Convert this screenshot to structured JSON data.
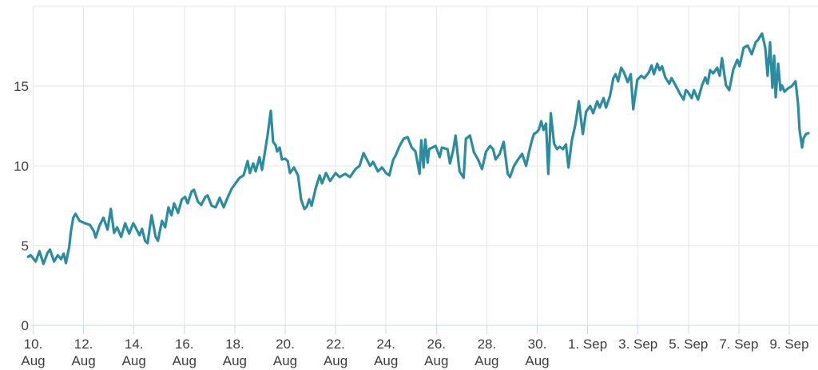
{
  "chart": {
    "background": "#ffffff",
    "styles": {
      "line_color": "#2b8ca0",
      "grid_color": "#e6e6e6",
      "axis_color": "#ccd6eb",
      "label_color": "#3d3d3d"
    }
  },
  "chart_data": {
    "type": "line",
    "title": "",
    "xlabel": "",
    "ylabel": "",
    "grid": "on",
    "legend": "none",
    "x_axis": {
      "unit": "date",
      "range_days": [
        -0.25,
        31.15
      ],
      "ticks": [
        {
          "day": 0,
          "top": "10.",
          "bottom": "Aug"
        },
        {
          "day": 2,
          "top": "12.",
          "bottom": "Aug"
        },
        {
          "day": 4,
          "top": "14.",
          "bottom": "Aug"
        },
        {
          "day": 6,
          "top": "16.",
          "bottom": "Aug"
        },
        {
          "day": 8,
          "top": "18.",
          "bottom": "Aug"
        },
        {
          "day": 10,
          "top": "20.",
          "bottom": "Aug"
        },
        {
          "day": 12,
          "top": "22.",
          "bottom": "Aug"
        },
        {
          "day": 14,
          "top": "24.",
          "bottom": "Aug"
        },
        {
          "day": 16,
          "top": "26.",
          "bottom": "Aug"
        },
        {
          "day": 18,
          "top": "28.",
          "bottom": "Aug"
        },
        {
          "day": 20,
          "top": "30.",
          "bottom": "Aug"
        },
        {
          "day": 22,
          "top": "1. Sep",
          "bottom": ""
        },
        {
          "day": 24,
          "top": "3. Sep",
          "bottom": ""
        },
        {
          "day": 26,
          "top": "5. Sep",
          "bottom": ""
        },
        {
          "day": 28,
          "top": "7. Sep",
          "bottom": ""
        },
        {
          "day": 30,
          "top": "9. Sep",
          "bottom": ""
        }
      ]
    },
    "y_axis": {
      "tick_values": [
        0,
        5,
        10,
        15
      ],
      "grid_values": [
        5,
        10,
        15,
        20
      ],
      "range": [
        0,
        20
      ]
    },
    "series": [
      {
        "color": "#2b8ca0",
        "points": [
          [
            -0.2,
            4.3
          ],
          [
            -0.1,
            4.4
          ],
          [
            0.0,
            4.2
          ],
          [
            0.1,
            4.0
          ],
          [
            0.25,
            4.65
          ],
          [
            0.41,
            3.85
          ],
          [
            0.57,
            4.55
          ],
          [
            0.67,
            4.75
          ],
          [
            0.83,
            4.0
          ],
          [
            0.98,
            4.4
          ],
          [
            1.11,
            4.15
          ],
          [
            1.21,
            4.5
          ],
          [
            1.3,
            3.9
          ],
          [
            1.43,
            4.9
          ],
          [
            1.5,
            5.9
          ],
          [
            1.59,
            6.75
          ],
          [
            1.68,
            7.0
          ],
          [
            1.84,
            6.55
          ],
          [
            2.06,
            6.4
          ],
          [
            2.25,
            6.3
          ],
          [
            2.41,
            5.9
          ],
          [
            2.48,
            5.5
          ],
          [
            2.63,
            6.25
          ],
          [
            2.79,
            6.75
          ],
          [
            2.95,
            6.0
          ],
          [
            3.08,
            7.3
          ],
          [
            3.21,
            5.8
          ],
          [
            3.33,
            6.15
          ],
          [
            3.49,
            5.55
          ],
          [
            3.65,
            6.4
          ],
          [
            3.81,
            5.75
          ],
          [
            3.97,
            6.4
          ],
          [
            4.06,
            6.15
          ],
          [
            4.22,
            5.65
          ],
          [
            4.32,
            6.05
          ],
          [
            4.44,
            5.3
          ],
          [
            4.54,
            5.15
          ],
          [
            4.7,
            6.9
          ],
          [
            4.86,
            5.55
          ],
          [
            4.95,
            5.3
          ],
          [
            5.11,
            6.55
          ],
          [
            5.24,
            6.15
          ],
          [
            5.37,
            7.4
          ],
          [
            5.49,
            6.9
          ],
          [
            5.59,
            7.65
          ],
          [
            5.75,
            7.05
          ],
          [
            5.9,
            7.9
          ],
          [
            6.03,
            8.05
          ],
          [
            6.13,
            7.65
          ],
          [
            6.29,
            8.4
          ],
          [
            6.38,
            8.5
          ],
          [
            6.54,
            7.75
          ],
          [
            6.67,
            7.55
          ],
          [
            6.83,
            8.05
          ],
          [
            6.92,
            8.15
          ],
          [
            7.08,
            7.5
          ],
          [
            7.24,
            7.4
          ],
          [
            7.4,
            8.0
          ],
          [
            7.56,
            7.4
          ],
          [
            7.71,
            8.0
          ],
          [
            7.87,
            8.55
          ],
          [
            8.03,
            8.9
          ],
          [
            8.19,
            9.25
          ],
          [
            8.35,
            9.4
          ],
          [
            8.51,
            10.3
          ],
          [
            8.6,
            9.55
          ],
          [
            8.73,
            10.15
          ],
          [
            8.83,
            9.65
          ],
          [
            8.98,
            10.55
          ],
          [
            9.08,
            9.75
          ],
          [
            9.3,
            11.9
          ],
          [
            9.43,
            13.45
          ],
          [
            9.52,
            11.5
          ],
          [
            9.62,
            11.3
          ],
          [
            9.68,
            10.9
          ],
          [
            9.78,
            11.15
          ],
          [
            9.87,
            10.4
          ],
          [
            10.0,
            10.45
          ],
          [
            10.1,
            10.3
          ],
          [
            10.19,
            9.55
          ],
          [
            10.35,
            9.9
          ],
          [
            10.51,
            9.4
          ],
          [
            10.63,
            7.9
          ],
          [
            10.76,
            7.3
          ],
          [
            10.86,
            7.45
          ],
          [
            10.95,
            7.9
          ],
          [
            11.05,
            7.5
          ],
          [
            11.21,
            8.6
          ],
          [
            11.37,
            9.4
          ],
          [
            11.46,
            8.9
          ],
          [
            11.62,
            9.55
          ],
          [
            11.78,
            9.05
          ],
          [
            12.0,
            9.55
          ],
          [
            12.16,
            9.3
          ],
          [
            12.38,
            9.5
          ],
          [
            12.57,
            9.3
          ],
          [
            12.79,
            9.8
          ],
          [
            12.95,
            10.0
          ],
          [
            13.11,
            10.8
          ],
          [
            13.37,
            10.0
          ],
          [
            13.49,
            10.25
          ],
          [
            13.68,
            9.65
          ],
          [
            13.84,
            9.9
          ],
          [
            14.0,
            9.55
          ],
          [
            14.13,
            9.4
          ],
          [
            14.29,
            10.4
          ],
          [
            14.38,
            10.65
          ],
          [
            14.54,
            11.25
          ],
          [
            14.7,
            11.7
          ],
          [
            14.86,
            11.8
          ],
          [
            15.02,
            11.15
          ],
          [
            15.17,
            10.9
          ],
          [
            15.33,
            9.5
          ],
          [
            15.4,
            11.6
          ],
          [
            15.49,
            9.9
          ],
          [
            15.56,
            11.65
          ],
          [
            15.65,
            10.2
          ],
          [
            15.71,
            11.05
          ],
          [
            15.97,
            11.25
          ],
          [
            16.13,
            10.55
          ],
          [
            16.22,
            11.15
          ],
          [
            16.44,
            11.05
          ],
          [
            16.54,
            10.15
          ],
          [
            16.67,
            11.0
          ],
          [
            16.76,
            11.9
          ],
          [
            16.92,
            9.65
          ],
          [
            17.08,
            9.25
          ],
          [
            17.17,
            11.7
          ],
          [
            17.33,
            11.9
          ],
          [
            17.49,
            10.85
          ],
          [
            17.65,
            10.4
          ],
          [
            17.81,
            9.8
          ],
          [
            17.97,
            10.9
          ],
          [
            18.13,
            11.25
          ],
          [
            18.25,
            11.05
          ],
          [
            18.35,
            10.4
          ],
          [
            18.51,
            10.75
          ],
          [
            18.67,
            11.5
          ],
          [
            18.83,
            9.5
          ],
          [
            18.92,
            9.3
          ],
          [
            19.08,
            10.0
          ],
          [
            19.24,
            10.4
          ],
          [
            19.4,
            10.75
          ],
          [
            19.56,
            10.0
          ],
          [
            19.68,
            10.9
          ],
          [
            19.78,
            11.55
          ],
          [
            19.87,
            12.0
          ],
          [
            19.97,
            12.1
          ],
          [
            20.06,
            12.25
          ],
          [
            20.16,
            12.8
          ],
          [
            20.25,
            12.25
          ],
          [
            20.35,
            12.65
          ],
          [
            20.44,
            9.5
          ],
          [
            20.54,
            13.3
          ],
          [
            20.67,
            11.4
          ],
          [
            20.79,
            11.05
          ],
          [
            20.89,
            11.2
          ],
          [
            21.02,
            11.05
          ],
          [
            21.14,
            11.35
          ],
          [
            21.24,
            9.9
          ],
          [
            21.37,
            11.55
          ],
          [
            21.52,
            12.65
          ],
          [
            21.65,
            14.05
          ],
          [
            21.81,
            12.0
          ],
          [
            21.94,
            13.4
          ],
          [
            22.1,
            13.75
          ],
          [
            22.22,
            13.3
          ],
          [
            22.38,
            14.05
          ],
          [
            22.48,
            13.65
          ],
          [
            22.63,
            14.25
          ],
          [
            22.73,
            13.65
          ],
          [
            22.89,
            14.4
          ],
          [
            23.02,
            15.5
          ],
          [
            23.11,
            15.75
          ],
          [
            23.21,
            15.3
          ],
          [
            23.33,
            16.15
          ],
          [
            23.43,
            15.9
          ],
          [
            23.59,
            15.25
          ],
          [
            23.71,
            15.75
          ],
          [
            23.81,
            13.55
          ],
          [
            23.97,
            15.4
          ],
          [
            24.13,
            15.65
          ],
          [
            24.25,
            15.5
          ],
          [
            24.44,
            15.9
          ],
          [
            24.54,
            16.3
          ],
          [
            24.63,
            15.75
          ],
          [
            24.76,
            16.4
          ],
          [
            24.86,
            16.0
          ],
          [
            24.95,
            16.25
          ],
          [
            25.08,
            15.55
          ],
          [
            25.24,
            15.15
          ],
          [
            25.33,
            15.5
          ],
          [
            25.49,
            15.05
          ],
          [
            25.65,
            14.55
          ],
          [
            25.81,
            14.15
          ],
          [
            25.9,
            14.75
          ],
          [
            25.97,
            14.65
          ],
          [
            26.13,
            14.25
          ],
          [
            26.22,
            14.75
          ],
          [
            26.38,
            14.15
          ],
          [
            26.54,
            15.05
          ],
          [
            26.67,
            15.55
          ],
          [
            26.76,
            15.15
          ],
          [
            26.86,
            16.0
          ],
          [
            26.98,
            15.8
          ],
          [
            27.14,
            16.15
          ],
          [
            27.24,
            15.65
          ],
          [
            27.33,
            16.75
          ],
          [
            27.49,
            15.05
          ],
          [
            27.62,
            14.75
          ],
          [
            27.78,
            16.05
          ],
          [
            27.94,
            16.65
          ],
          [
            28.03,
            16.25
          ],
          [
            28.19,
            17.4
          ],
          [
            28.35,
            17.55
          ],
          [
            28.51,
            17.0
          ],
          [
            28.67,
            17.75
          ],
          [
            28.76,
            17.9
          ],
          [
            28.92,
            18.3
          ],
          [
            29.05,
            17.4
          ],
          [
            29.14,
            15.65
          ],
          [
            29.24,
            17.75
          ],
          [
            29.33,
            14.9
          ],
          [
            29.4,
            16.9
          ],
          [
            29.46,
            14.3
          ],
          [
            29.56,
            16.4
          ],
          [
            29.65,
            14.75
          ],
          [
            29.71,
            15.05
          ],
          [
            29.81,
            14.65
          ],
          [
            29.94,
            14.85
          ],
          [
            30.1,
            15.0
          ],
          [
            30.25,
            15.3
          ],
          [
            30.35,
            13.9
          ],
          [
            30.41,
            12.25
          ],
          [
            30.51,
            11.15
          ],
          [
            30.57,
            11.75
          ],
          [
            30.67,
            12.0
          ],
          [
            30.76,
            12.05
          ]
        ]
      }
    ]
  }
}
